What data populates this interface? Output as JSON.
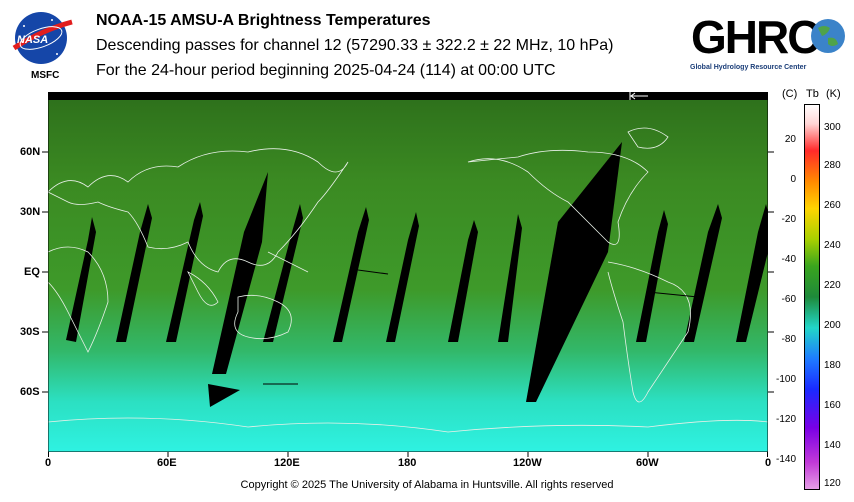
{
  "header": {
    "title": "NOAA-15 AMSU-A Brightness Temperatures",
    "subtitle": "Descending passes for channel 12 (57290.33 ± 322.2 ± 22 MHz, 10 hPa)",
    "period": "For the 24-hour period beginning 2025-04-24 (114) at 00:00 UTC"
  },
  "logos": {
    "nasa_text": "NASA",
    "nasa_label": "MSFC",
    "ghrc_text": "GHRC",
    "ghrc_subtitle": "Global Hydrology Resource Center"
  },
  "map": {
    "lat_labels": [
      "60N",
      "30N",
      "EQ",
      "30S",
      "60S"
    ],
    "lon_labels": [
      "0",
      "60E",
      "120E",
      "180",
      "120W",
      "60W",
      "0"
    ],
    "colors": {
      "ocean_south": "#2ee6d2",
      "mid": "#3a9a2a",
      "north": "#2f7d1c",
      "coast": "#ffffff",
      "gap": "#000000"
    }
  },
  "colorbar": {
    "header_c": "(C)",
    "header_tb": "Tb",
    "header_k": "(K)",
    "celsius_labels": [
      "20",
      "0",
      "-20",
      "-40",
      "-60",
      "-80",
      "-100",
      "-120",
      "-140"
    ],
    "kelvin_labels": [
      "300",
      "280",
      "260",
      "240",
      "220",
      "200",
      "180",
      "160",
      "140",
      "120"
    ]
  },
  "footer": {
    "copyright": "Copyright © 2025 The University of Alabama in Huntsville.  All rights reserved"
  }
}
